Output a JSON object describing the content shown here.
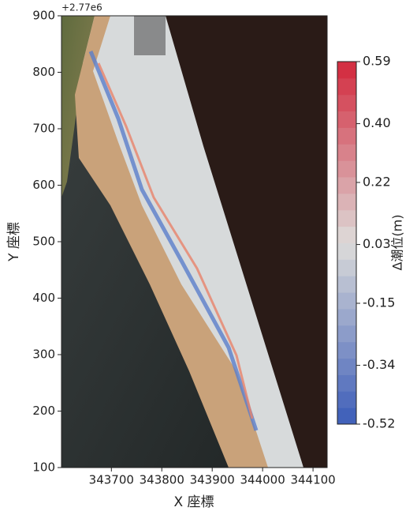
{
  "chart_data": {
    "type": "image",
    "offset_text": "+2.77e6",
    "xlabel": "X 座標",
    "ylabel": "Y 座標",
    "xlim": [
      343601,
      344128
    ],
    "xticks": [
      343700,
      343800,
      343900,
      344000,
      344100
    ],
    "ylim": [
      100,
      900
    ],
    "yticks": [
      100,
      200,
      300,
      400,
      500,
      600,
      700,
      800,
      900
    ],
    "colorbar": {
      "label": "Δ潮位(m)",
      "lim": [
        -0.52,
        0.59
      ],
      "ticks": [
        0.59,
        {
          "value": 0.4,
          "label": "0.40"
        },
        0.22,
        0.03,
        -0.15,
        -0.34,
        -0.52
      ]
    }
  }
}
